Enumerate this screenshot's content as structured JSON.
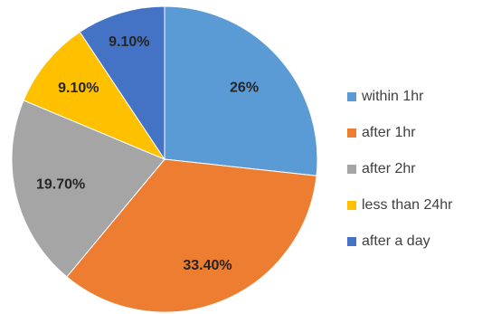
{
  "chart_data": {
    "type": "pie",
    "title": "",
    "slices": [
      {
        "label": "within 1hr",
        "value": 26,
        "display": "26%",
        "color": "#5b9bd5"
      },
      {
        "label": "after 1hr",
        "value": 33.4,
        "display": "33.40%",
        "color": "#ed7d31"
      },
      {
        "label": "after 2hr",
        "value": 19.7,
        "display": "19.70%",
        "color": "#a5a5a5"
      },
      {
        "label": "less than 24hr",
        "value": 9.1,
        "display": "9.10%",
        "color": "#ffc000"
      },
      {
        "label": "after a day",
        "value": 9.1,
        "display": "9.10%",
        "color": "#4472c4"
      }
    ],
    "start_angle": "12 o'clock",
    "direction": "clockwise",
    "legend": {
      "position": "right"
    }
  },
  "legend": {
    "items": [
      {
        "label": "within 1hr",
        "color": "#5b9bd5"
      },
      {
        "label": "after 1hr",
        "color": "#ed7d31"
      },
      {
        "label": "after 2hr",
        "color": "#a5a5a5"
      },
      {
        "label": "less than 24hr",
        "color": "#ffc000"
      },
      {
        "label": "after a day",
        "color": "#4472c4"
      }
    ]
  }
}
